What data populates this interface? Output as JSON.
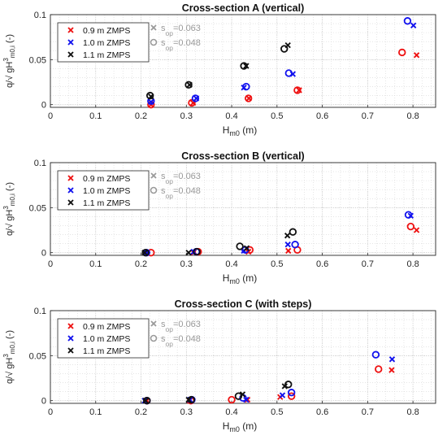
{
  "chart_data": [
    {
      "type": "scatter",
      "title": "Cross-section  A (vertical)",
      "xlabel_main": "H",
      "xlabel_sub": "m0",
      "xlabel_unit": " (m)",
      "ylabel": {
        "pre": "q/√ gH",
        "sup": "3",
        "sub": "m0,i",
        "post": " (-)"
      },
      "xlim": [
        0,
        0.85
      ],
      "ylim": [
        -0.003,
        0.1
      ],
      "xticks": [
        "0",
        "0.1",
        "0.2",
        "0.3",
        "0.4",
        "0.5",
        "0.6",
        "0.7",
        "0.8"
      ],
      "yticks": [
        "0",
        "0.05",
        "0.1"
      ],
      "legend": {
        "entries": [
          "0.9 m ZMPS",
          "1.0 m ZMPS",
          "1.1 m ZMPS"
        ],
        "wave_entries": [
          {
            "marker": "x",
            "label_pre": "s",
            "label_sub": "op",
            "label_post": "=0.063"
          },
          {
            "marker": "o",
            "label_pre": "s",
            "label_sub": "op",
            "label_post": "=0.048"
          }
        ]
      },
      "series": [
        {
          "name": "0.9 m ZMPS",
          "color": "#ee1111",
          "x_points": [
            [
              0.222,
              0.0
            ],
            [
              0.315,
              0.002
            ],
            [
              0.438,
              0.007
            ],
            [
              0.549,
              0.016
            ],
            [
              0.808,
              0.055
            ]
          ],
          "o_points": [
            [
              0.222,
              0.0
            ],
            [
              0.312,
              0.002
            ],
            [
              0.437,
              0.007
            ],
            [
              0.545,
              0.016
            ],
            [
              0.776,
              0.058
            ]
          ]
        },
        {
          "name": "1.0 m ZMPS",
          "color": "#1111ee",
          "x_points": [
            [
              0.222,
              0.003
            ],
            [
              0.322,
              0.007
            ],
            [
              0.427,
              0.019
            ],
            [
              0.535,
              0.034
            ],
            [
              0.801,
              0.088
            ]
          ],
          "o_points": [
            [
              0.222,
              0.004
            ],
            [
              0.32,
              0.007
            ],
            [
              0.432,
              0.02
            ],
            [
              0.526,
              0.035
            ],
            [
              0.788,
              0.093
            ]
          ]
        },
        {
          "name": "1.1 m ZMPS",
          "color": "#111111",
          "x_points": [
            [
              0.222,
              0.009
            ],
            [
              0.307,
              0.022
            ],
            [
              0.432,
              0.043
            ],
            [
              0.524,
              0.066
            ]
          ],
          "o_points": [
            [
              0.22,
              0.01
            ],
            [
              0.305,
              0.022
            ],
            [
              0.427,
              0.043
            ],
            [
              0.516,
              0.062
            ]
          ]
        }
      ]
    },
    {
      "type": "scatter",
      "title": "Cross-section  B (vertical)",
      "xlabel_main": "H",
      "xlabel_sub": "m0",
      "xlabel_unit": " (m)",
      "ylabel": {
        "pre": "q/√ gH",
        "sup": "3",
        "sub": "m0,i",
        "post": " (-)"
      },
      "xlim": [
        0,
        0.85
      ],
      "ylim": [
        -0.003,
        0.1
      ],
      "xticks": [
        "0",
        "0.1",
        "0.2",
        "0.3",
        "0.4",
        "0.5",
        "0.6",
        "0.7",
        "0.8"
      ],
      "yticks": [
        "0",
        "0.05",
        "0.1"
      ],
      "legend": {
        "entries": [
          "0.9 m ZMPS",
          "1.0 m ZMPS",
          "1.1 m ZMPS"
        ],
        "wave_entries": [
          {
            "marker": "x",
            "label_pre": "s",
            "label_sub": "op",
            "label_post": "=0.063"
          },
          {
            "marker": "o",
            "label_pre": "s",
            "label_sub": "op",
            "label_post": "=0.048"
          }
        ]
      },
      "series": [
        {
          "name": "0.9 m ZMPS",
          "color": "#ee1111",
          "x_points": [
            [
              0.212,
              0.0
            ],
            [
              0.316,
              0.0
            ],
            [
              0.437,
              0.001
            ],
            [
              0.525,
              0.002
            ],
            [
              0.808,
              0.025
            ]
          ],
          "o_points": [
            [
              0.222,
              0.0
            ],
            [
              0.326,
              0.001
            ],
            [
              0.44,
              0.003
            ],
            [
              0.545,
              0.003
            ],
            [
              0.795,
              0.029
            ]
          ]
        },
        {
          "name": "1.0 m ZMPS",
          "color": "#1111ee",
          "x_points": [
            [
              0.212,
              0.0
            ],
            [
              0.316,
              0.001
            ],
            [
              0.427,
              0.002
            ],
            [
              0.524,
              0.009
            ],
            [
              0.795,
              0.041
            ]
          ],
          "o_points": [
            [
              0.212,
              0.0
            ],
            [
              0.322,
              0.001
            ],
            [
              0.43,
              0.003
            ],
            [
              0.54,
              0.009
            ],
            [
              0.79,
              0.042
            ]
          ]
        },
        {
          "name": "1.1 m ZMPS",
          "color": "#111111",
          "x_points": [
            [
              0.208,
              0.0
            ],
            [
              0.305,
              0.0
            ],
            [
              0.433,
              0.005
            ],
            [
              0.523,
              0.019
            ]
          ],
          "o_points": [
            [
              0.21,
              0.0
            ],
            [
              0.323,
              0.001
            ],
            [
              0.418,
              0.007
            ],
            [
              0.535,
              0.023
            ]
          ]
        }
      ]
    },
    {
      "type": "scatter",
      "title": "Cross-section  C (with steps)",
      "xlabel_main": "H",
      "xlabel_sub": "m0",
      "xlabel_unit": " (m)",
      "ylabel": {
        "pre": "q/√ gH",
        "sup": "3",
        "sub": "m0,i",
        "post": " (-)"
      },
      "xlim": [
        0,
        0.85
      ],
      "ylim": [
        -0.003,
        0.1
      ],
      "xticks": [
        "0",
        "0.1",
        "0.2",
        "0.3",
        "0.4",
        "0.5",
        "0.6",
        "0.7",
        "0.8"
      ],
      "yticks": [
        "0",
        "0.05",
        "0.1"
      ],
      "legend": {
        "entries": [
          "0.9 m ZMPS",
          "1.0 m ZMPS",
          "1.1 m ZMPS"
        ],
        "wave_entries": [
          {
            "marker": "x",
            "label_pre": "s",
            "label_sub": "op",
            "label_post": "=0.063"
          },
          {
            "marker": "o",
            "label_pre": "s",
            "label_sub": "op",
            "label_post": "=0.048"
          }
        ]
      },
      "series": [
        {
          "name": "0.9 m ZMPS",
          "color": "#ee1111",
          "x_points": [
            [
              0.213,
              0.0
            ],
            [
              0.307,
              0.0
            ],
            [
              0.435,
              0.001
            ],
            [
              0.507,
              0.004
            ],
            [
              0.753,
              0.034
            ]
          ],
          "o_points": [
            [
              0.213,
              0.0
            ],
            [
              0.31,
              0.0
            ],
            [
              0.4,
              0.001
            ],
            [
              0.532,
              0.005
            ],
            [
              0.724,
              0.035
            ]
          ]
        },
        {
          "name": "1.0 m ZMPS",
          "color": "#1111ee",
          "x_points": [
            [
              0.208,
              0.0
            ],
            [
              0.308,
              0.001
            ],
            [
              0.432,
              0.001
            ],
            [
              0.512,
              0.006
            ],
            [
              0.754,
              0.046
            ]
          ],
          "o_points": [
            [
              0.213,
              0.0
            ],
            [
              0.312,
              0.001
            ],
            [
              0.425,
              0.003
            ],
            [
              0.532,
              0.009
            ],
            [
              0.718,
              0.051
            ]
          ]
        },
        {
          "name": "1.1 m ZMPS",
          "color": "#111111",
          "x_points": [
            [
              0.21,
              0.0
            ],
            [
              0.305,
              0.001
            ],
            [
              0.424,
              0.007
            ],
            [
              0.517,
              0.016
            ]
          ],
          "o_points": [
            [
              0.213,
              0.0
            ],
            [
              0.311,
              0.001
            ],
            [
              0.415,
              0.005
            ],
            [
              0.525,
              0.018
            ]
          ]
        }
      ]
    }
  ],
  "legend_gray": "#999999"
}
